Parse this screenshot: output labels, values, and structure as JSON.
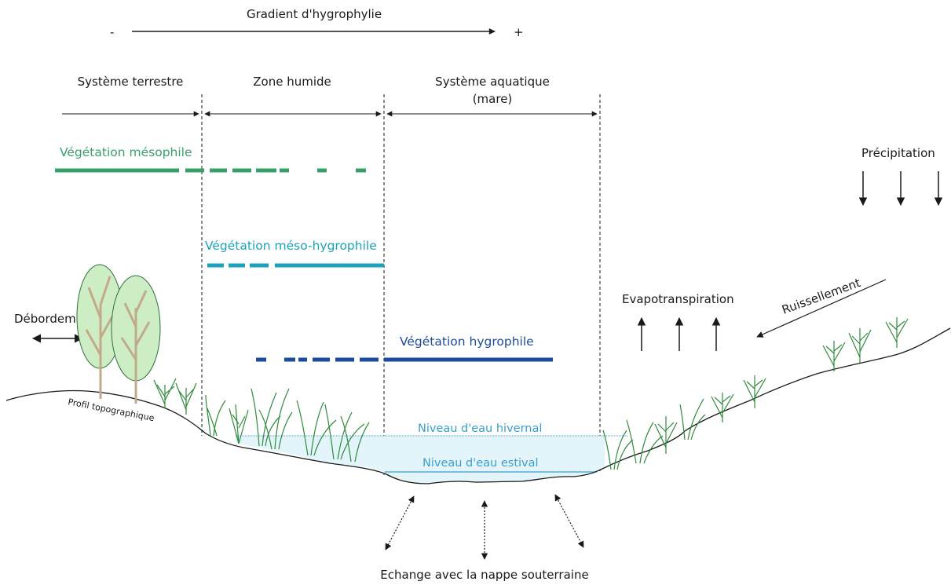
{
  "gradient": {
    "title": "Gradient d'hygrophylie",
    "minus": "-",
    "plus": "+"
  },
  "zones": {
    "terrestre": "Système terrestre",
    "humide": "Zone humide",
    "aquatique_line1": "Système aquatique",
    "aquatique_line2": "(mare)"
  },
  "vegetation": {
    "mesophile": "Végétation mésophile",
    "meso_hygrophile": "Végétation méso-hygrophile",
    "hygrophile": "Végétation hygrophile"
  },
  "flows": {
    "precipitation": "Précipitation",
    "evapotranspiration": "Evapotranspiration",
    "ruissellement": "Ruissellement",
    "debordement": "Débordement",
    "echange": "Echange avec la nappe souterraine"
  },
  "terrain": {
    "profil": "Profil topographique"
  },
  "water": {
    "hivernal": "Niveau d'eau hivernal",
    "estival": "Niveau d'eau estival"
  },
  "colors": {
    "mesophile": "#3aa06a",
    "meso_hygrophile": "#1ba3bd",
    "hygrophile": "#1c4b9e",
    "water_fill": "#e3f5fb",
    "water_line": "#3a9fcf",
    "tree_fill": "#cdeec4",
    "tree_trunk": "#c2a98a",
    "grass": "#2e8b3a"
  },
  "icons": [
    "tree-icon",
    "grass-tuft-icon",
    "arrow-icon"
  ]
}
